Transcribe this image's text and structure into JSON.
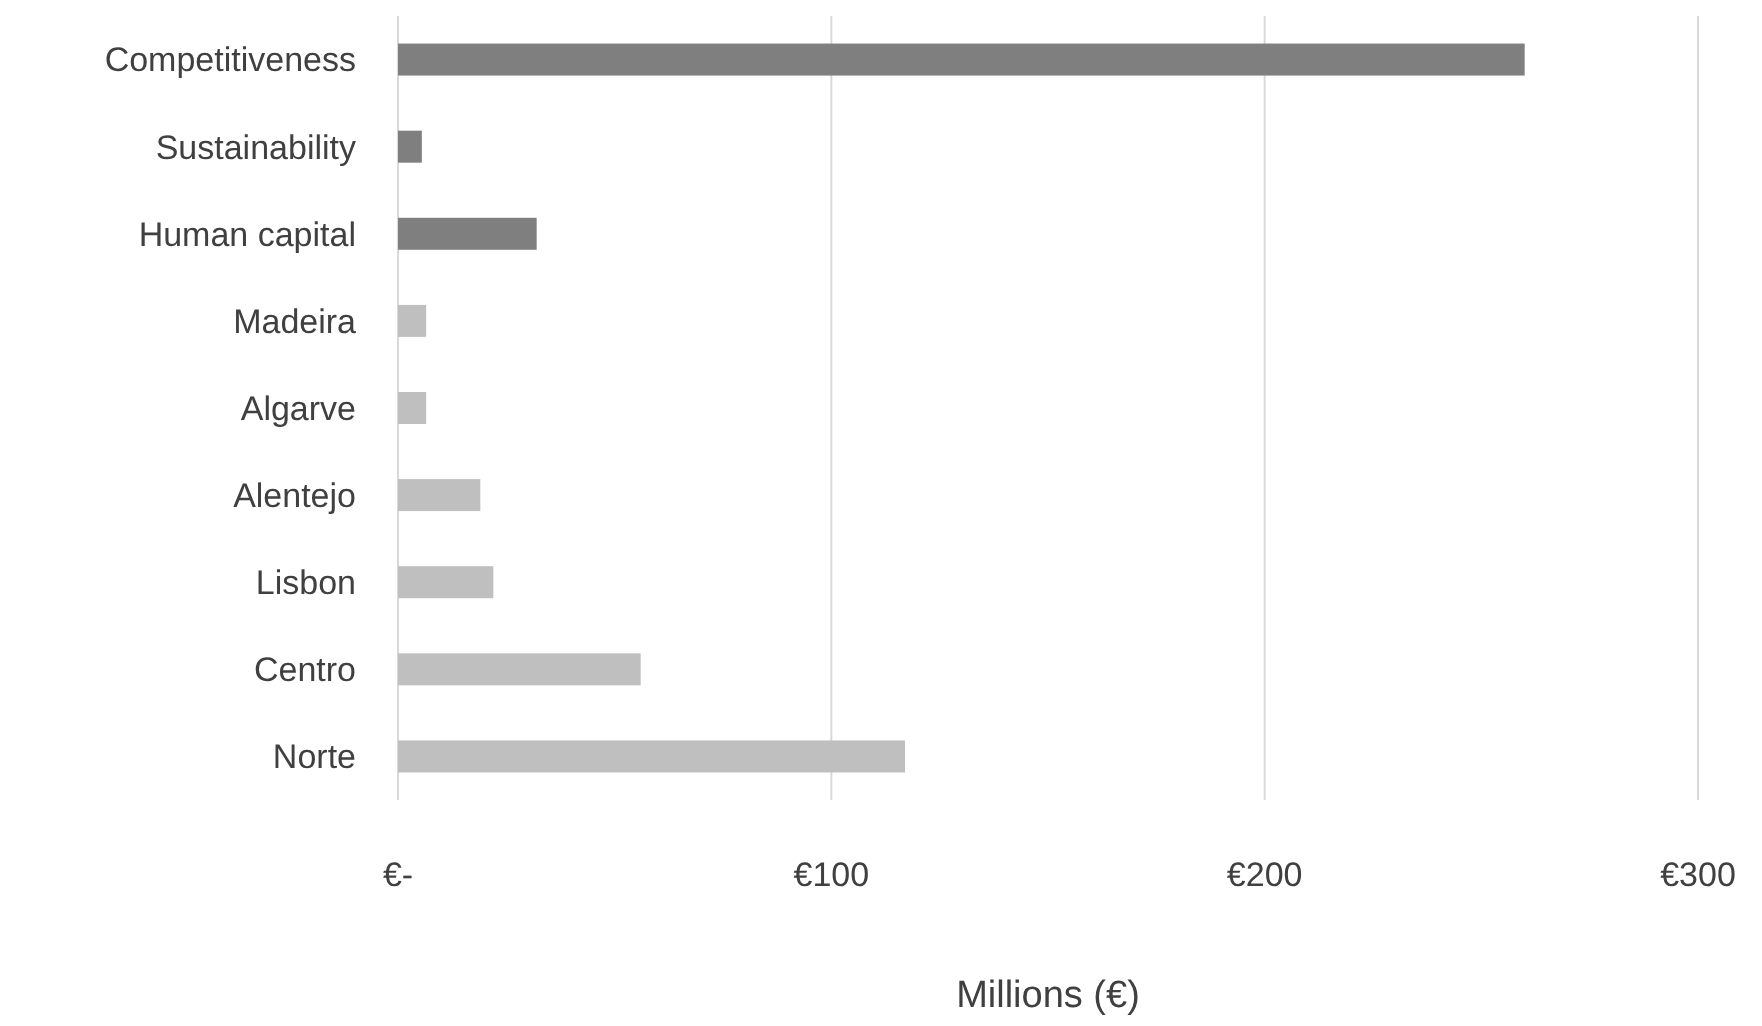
{
  "chart_data": {
    "type": "bar",
    "orientation": "horizontal",
    "xlabel": "Millions (€)",
    "categories": [
      "Competitiveness",
      "Sustainability",
      "Human capital",
      "Madeira",
      "Algarve",
      "Alentejo",
      "Lisbon",
      "Centro",
      "Norte"
    ],
    "values": [
      260,
      5.5,
      32,
      6.5,
      6.5,
      19,
      22,
      56,
      117
    ],
    "colors": [
      "#7f7f7f",
      "#7f7f7f",
      "#7f7f7f",
      "#bfbfbf",
      "#bfbfbf",
      "#bfbfbf",
      "#bfbfbf",
      "#bfbfbf",
      "#bfbfbf"
    ],
    "xlim": [
      0,
      300
    ],
    "xticks": [
      {
        "value": 0,
        "label": "€-"
      },
      {
        "value": 100,
        "label": "€100"
      },
      {
        "value": 200,
        "label": "€200"
      },
      {
        "value": 300,
        "label": "€300"
      }
    ],
    "grid": "x"
  }
}
